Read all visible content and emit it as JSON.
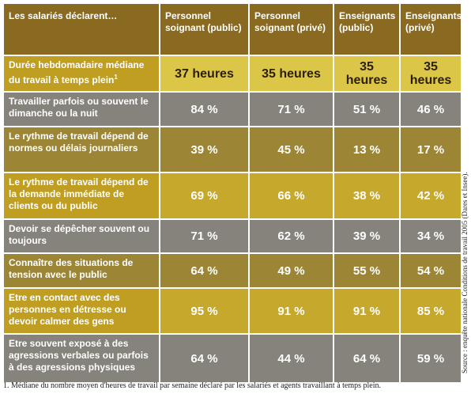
{
  "header": {
    "columns": [
      "Les salariés déclarent…",
      "Personnel soignant (public)",
      "Personnel soignant (privé)",
      "Enseignants (public)",
      "Enseignants (privé)"
    ]
  },
  "rows": [
    {
      "label": "Durée hebdomadaire médiane du travail à temps plein",
      "note": "1",
      "values": [
        "37 heures",
        "35 heures",
        "35 heures",
        "35 heures"
      ]
    },
    {
      "label": "Travailler parfois ou souvent le dimanche ou la nuit",
      "values": [
        "84 %",
        "71 %",
        "51 %",
        "46 %"
      ]
    },
    {
      "label": "Le rythme de travail dépend de normes ou délais journaliers",
      "values": [
        "39 %",
        "45 %",
        "13 %",
        "17 %"
      ]
    },
    {
      "label": "Le rythme de travail dépend de la demande immédiate de clients ou du public",
      "values": [
        "69 %",
        "66 %",
        "38 %",
        "42 %"
      ]
    },
    {
      "label": "Devoir se dépêcher souvent ou toujours",
      "values": [
        "71 %",
        "62 %",
        "39 %",
        "34 %"
      ]
    },
    {
      "label": "Connaître des situations de tension avec le public",
      "values": [
        "64 %",
        "49 %",
        "55 %",
        "54 %"
      ]
    },
    {
      "label": "Etre en contact avec des personnes en détresse ou devoir calmer des gens",
      "values": [
        "95 %",
        "91 %",
        "91 %",
        "85 %"
      ]
    },
    {
      "label": "Etre souvent exposé à des agressions verbales ou parfois à des agressions physiques",
      "values": [
        "64 %",
        "44 %",
        "64 %",
        "59 %"
      ]
    }
  ],
  "footnote": "1. Médiane du nombre moyen d'heures de travail par semaine déclaré par les salariés et agents travaillant à temps plein.",
  "source": "Source : enquête nationale Conditions de travail 2005 (Dares et Insee)."
}
